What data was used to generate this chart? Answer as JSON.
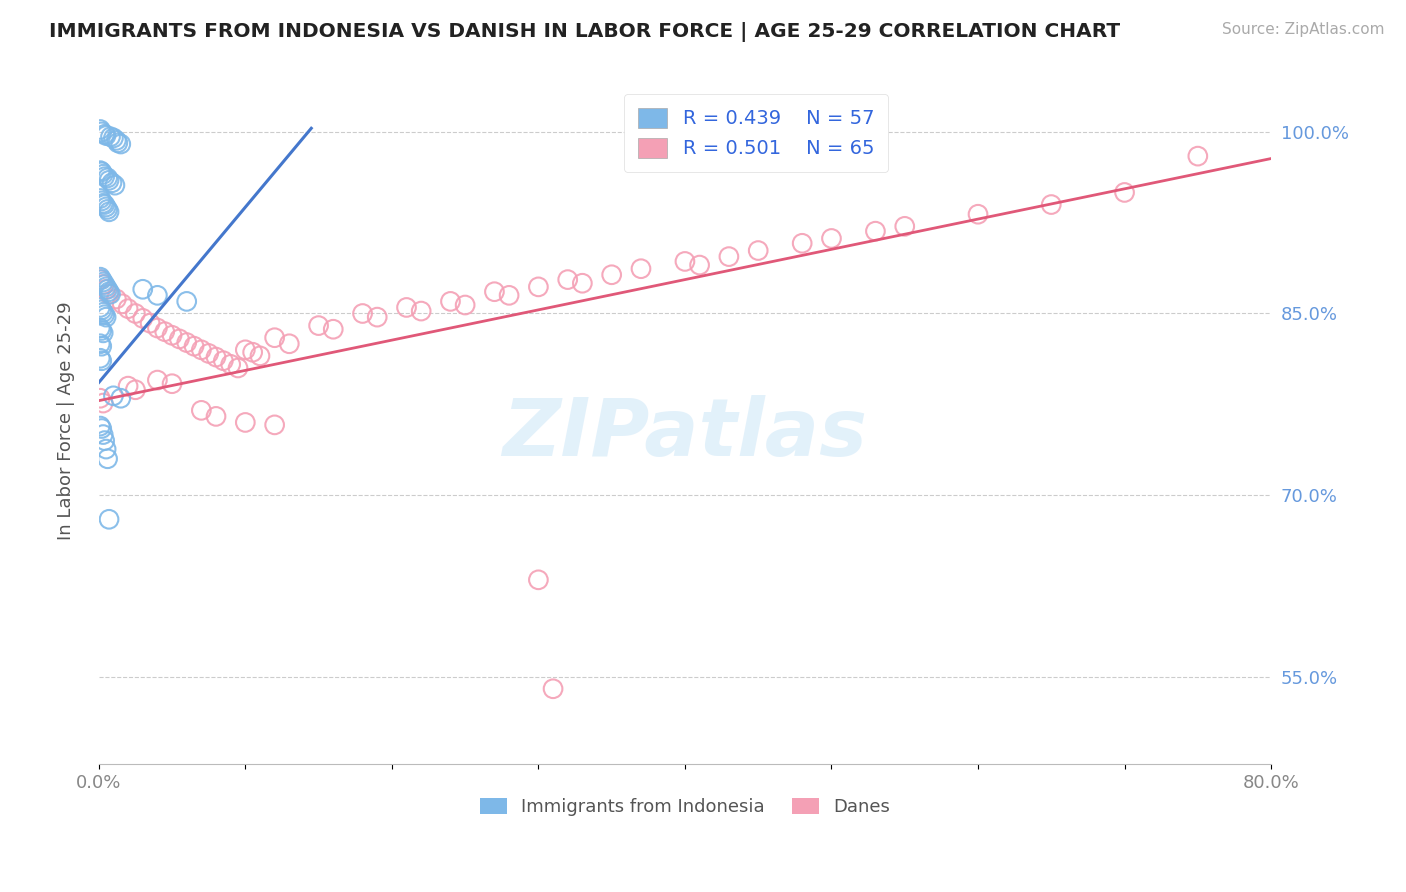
{
  "title": "IMMIGRANTS FROM INDONESIA VS DANISH IN LABOR FORCE | AGE 25-29 CORRELATION CHART",
  "source": "Source: ZipAtlas.com",
  "ylabel": "In Labor Force | Age 25-29",
  "xmin": 0.0,
  "xmax": 0.8,
  "ymin": 0.478,
  "ymax": 1.045,
  "ytick_positions": [
    0.55,
    0.7,
    0.85,
    1.0
  ],
  "ytick_labels": [
    "55.0%",
    "70.0%",
    "85.0%",
    "100.0%"
  ],
  "xtick_positions": [
    0.0,
    0.1,
    0.2,
    0.3,
    0.4,
    0.5,
    0.6,
    0.7,
    0.8
  ],
  "xtick_labels": [
    "0.0%",
    "",
    "",
    "",
    "",
    "",
    "",
    "",
    "80.0%"
  ],
  "blue_color": "#7EB8E8",
  "pink_color": "#F4A0B5",
  "blue_line_color": "#4477CC",
  "pink_line_color": "#E05878",
  "ytick_color": "#6699DD",
  "blue_line_x": [
    0.0,
    0.145
  ],
  "blue_line_y": [
    0.793,
    1.003
  ],
  "pink_line_x": [
    0.0,
    0.8
  ],
  "pink_line_y": [
    0.778,
    0.978
  ],
  "blue_x": [
    0.001,
    0.002,
    0.004,
    0.005,
    0.008,
    0.01,
    0.012,
    0.013,
    0.015,
    0.001,
    0.002,
    0.003,
    0.004,
    0.006,
    0.007,
    0.009,
    0.011,
    0.001,
    0.002,
    0.003,
    0.004,
    0.005,
    0.006,
    0.007,
    0.001,
    0.002,
    0.003,
    0.004,
    0.005,
    0.006,
    0.007,
    0.008,
    0.001,
    0.002,
    0.003,
    0.004,
    0.005,
    0.001,
    0.002,
    0.003,
    0.001,
    0.002,
    0.001,
    0.002,
    0.03,
    0.04,
    0.06,
    0.01,
    0.015,
    0.001,
    0.002,
    0.003,
    0.004,
    0.005,
    0.006,
    0.007
  ],
  "blue_y": [
    1.002,
    1.0,
    0.998,
    0.997,
    0.996,
    0.995,
    0.993,
    0.991,
    0.99,
    0.968,
    0.967,
    0.965,
    0.963,
    0.962,
    0.96,
    0.958,
    0.956,
    0.945,
    0.943,
    0.941,
    0.94,
    0.938,
    0.936,
    0.934,
    0.88,
    0.878,
    0.876,
    0.874,
    0.872,
    0.87,
    0.868,
    0.866,
    0.855,
    0.853,
    0.851,
    0.849,
    0.847,
    0.838,
    0.836,
    0.834,
    0.825,
    0.823,
    0.813,
    0.811,
    0.87,
    0.865,
    0.86,
    0.782,
    0.78,
    0.757,
    0.755,
    0.75,
    0.745,
    0.738,
    0.73,
    0.68
  ],
  "pink_x": [
    0.001,
    0.003,
    0.005,
    0.007,
    0.012,
    0.016,
    0.02,
    0.025,
    0.03,
    0.035,
    0.04,
    0.045,
    0.05,
    0.055,
    0.06,
    0.065,
    0.07,
    0.075,
    0.08,
    0.085,
    0.09,
    0.095,
    0.1,
    0.105,
    0.11,
    0.12,
    0.13,
    0.15,
    0.16,
    0.18,
    0.19,
    0.21,
    0.22,
    0.24,
    0.25,
    0.27,
    0.28,
    0.3,
    0.32,
    0.33,
    0.35,
    0.37,
    0.4,
    0.41,
    0.43,
    0.45,
    0.48,
    0.5,
    0.53,
    0.55,
    0.6,
    0.65,
    0.7,
    0.75,
    0.001,
    0.003,
    0.02,
    0.025,
    0.04,
    0.05,
    0.07,
    0.08,
    0.1,
    0.12,
    0.3,
    0.31
  ],
  "pink_y": [
    0.878,
    0.874,
    0.87,
    0.866,
    0.862,
    0.858,
    0.854,
    0.85,
    0.846,
    0.842,
    0.838,
    0.835,
    0.832,
    0.829,
    0.826,
    0.823,
    0.82,
    0.817,
    0.814,
    0.811,
    0.808,
    0.805,
    0.82,
    0.818,
    0.815,
    0.83,
    0.825,
    0.84,
    0.837,
    0.85,
    0.847,
    0.855,
    0.852,
    0.86,
    0.857,
    0.868,
    0.865,
    0.872,
    0.878,
    0.875,
    0.882,
    0.887,
    0.893,
    0.89,
    0.897,
    0.902,
    0.908,
    0.912,
    0.918,
    0.922,
    0.932,
    0.94,
    0.95,
    0.98,
    0.78,
    0.776,
    0.79,
    0.787,
    0.795,
    0.792,
    0.77,
    0.765,
    0.76,
    0.758,
    0.63,
    0.54
  ]
}
